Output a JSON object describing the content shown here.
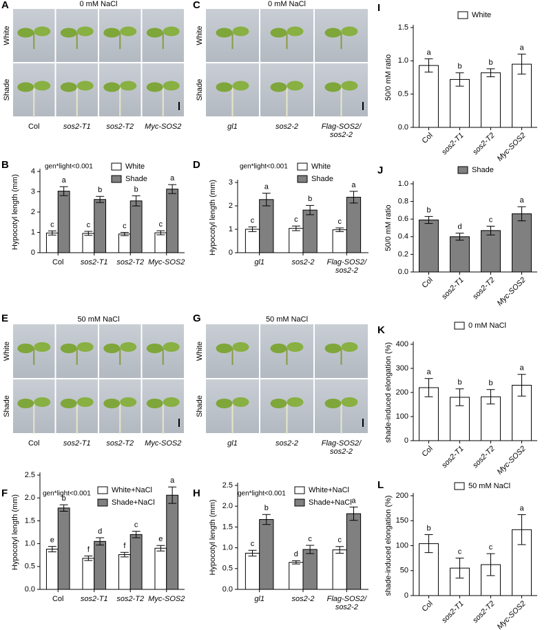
{
  "photo_panels": [
    {
      "panel": "A",
      "title": "0 mM NaCl",
      "rows": [
        "White",
        "Shade"
      ],
      "columns": [
        "Col",
        "sos2-T1",
        "sos2-T2",
        "Myc-SOS2"
      ]
    },
    {
      "panel": "C",
      "title": "0 mM NaCl",
      "rows": [
        "White",
        "Shade"
      ],
      "columns": [
        "gl1",
        "sos2-2",
        "Flag-SOS2/\nsos2-2"
      ]
    },
    {
      "panel": "E",
      "title": "50 mM NaCl",
      "rows": [
        "White",
        "Shade"
      ],
      "columns": [
        "Col",
        "sos2-T1",
        "sos2-T2",
        "Myc-SOS2"
      ]
    },
    {
      "panel": "G",
      "title": "50 mM NaCl",
      "rows": [
        "White",
        "Shade"
      ],
      "columns": [
        "gl1",
        "sos2-2",
        "Flag-SOS2/\nsos2-2"
      ]
    }
  ],
  "chart_data": [
    {
      "panel": "B",
      "type": "bar",
      "annotation": "gen*light<0.001",
      "y_label": "Hypocotyl length (mm)",
      "categories": [
        "Col",
        "sos2-T1",
        "sos2-T2",
        "Myc-SOS2"
      ],
      "series": [
        {
          "name": "White",
          "color": "#ffffff",
          "values": [
            0.97,
            0.95,
            0.92,
            0.98
          ],
          "errors": [
            0.1,
            0.1,
            0.08,
            0.1
          ],
          "letters": [
            "c",
            "c",
            "c",
            "c"
          ]
        },
        {
          "name": "Shade",
          "color": "#808080",
          "values": [
            3.03,
            2.62,
            2.55,
            3.13
          ],
          "errors": [
            0.22,
            0.15,
            0.25,
            0.22
          ],
          "letters": [
            "a",
            "b",
            "b",
            "a"
          ]
        }
      ],
      "ylim": [
        0,
        4
      ],
      "yticks": [
        0,
        1,
        2,
        3,
        4
      ],
      "legend": "top-right"
    },
    {
      "panel": "D",
      "type": "bar",
      "annotation": "gen*light<0.001",
      "y_label": "Hypocotyl length (mm)",
      "categories": [
        "gl1",
        "sos2-2",
        "Flag-SOS2/\nsos2-2"
      ],
      "series": [
        {
          "name": "White",
          "color": "#ffffff",
          "values": [
            1.0,
            1.04,
            0.98
          ],
          "errors": [
            0.1,
            0.1,
            0.08
          ],
          "letters": [
            "c",
            "c",
            "c"
          ]
        },
        {
          "name": "Shade",
          "color": "#808080",
          "values": [
            2.27,
            1.82,
            2.37
          ],
          "errors": [
            0.27,
            0.2,
            0.25
          ],
          "letters": [
            "a",
            "b",
            "a"
          ]
        }
      ],
      "ylim": [
        0,
        3
      ],
      "yticks": [
        0,
        1,
        2,
        3
      ],
      "legend": "top-right"
    },
    {
      "panel": "F",
      "type": "bar",
      "annotation": "gen*light<0.001",
      "y_label": "Hypocotyl length (mm)",
      "categories": [
        "Col",
        "sos2-T1",
        "sos2-T2",
        "Myc-SOS2"
      ],
      "series": [
        {
          "name": "White+NaCl",
          "color": "#ffffff",
          "values": [
            0.88,
            0.68,
            0.76,
            0.9
          ],
          "errors": [
            0.06,
            0.05,
            0.05,
            0.06
          ],
          "letters": [
            "e",
            "f",
            "f",
            "e"
          ]
        },
        {
          "name": "Shade+NaCl",
          "color": "#808080",
          "values": [
            1.78,
            1.05,
            1.2,
            2.06
          ],
          "errors": [
            0.07,
            0.08,
            0.07,
            0.18
          ],
          "letters": [
            "b",
            "d",
            "c",
            "a"
          ]
        }
      ],
      "ylim": [
        0,
        2.5
      ],
      "yticks": [
        {
          "value": 0,
          "label": "0.0"
        },
        {
          "value": 0.5,
          "label": "0.5"
        },
        {
          "value": 1,
          "label": "1.0"
        },
        {
          "value": 1.5,
          "label": "1.5"
        },
        {
          "value": 2,
          "label": "2.0"
        },
        {
          "value": 2.5,
          "label": "2.5"
        }
      ],
      "legend": "top-right"
    },
    {
      "panel": "H",
      "type": "bar",
      "annotation": "gen*light<0.001",
      "y_label": "Hypocotyl length (mm)",
      "categories": [
        "gl1",
        "sos2-2",
        "Flag-SOS2/\nsos2-2"
      ],
      "series": [
        {
          "name": "White+NaCl",
          "color": "#ffffff",
          "values": [
            0.87,
            0.65,
            0.95
          ],
          "errors": [
            0.07,
            0.04,
            0.08
          ],
          "letters": [
            "c",
            "d",
            "c"
          ]
        },
        {
          "name": "Shade+NaCl",
          "color": "#808080",
          "values": [
            1.68,
            0.96,
            1.82
          ],
          "errors": [
            0.12,
            0.1,
            0.16
          ],
          "letters": [
            "b",
            "c",
            "a"
          ]
        }
      ],
      "ylim": [
        0,
        2.5
      ],
      "yticks": [
        {
          "value": 0,
          "label": "0.0"
        },
        {
          "value": 0.5,
          "label": "0.5"
        },
        {
          "value": 1,
          "label": "1.0"
        },
        {
          "value": 1.5,
          "label": "1.5"
        },
        {
          "value": 2,
          "label": "2.0"
        },
        {
          "value": 2.5,
          "label": "2.5"
        }
      ],
      "legend": "top-right"
    },
    {
      "panel": "I",
      "type": "bar",
      "y_label": "50/0 mM ratio",
      "categories": [
        "Col",
        "sos2-T1",
        "sos2-T2",
        "Myc-SOS2"
      ],
      "series": [
        {
          "name": "White",
          "color": "#ffffff",
          "values": [
            0.93,
            0.72,
            0.82,
            0.95
          ],
          "errors": [
            0.1,
            0.1,
            0.06,
            0.15
          ],
          "letters": [
            "a",
            "b",
            "b",
            "a"
          ]
        }
      ],
      "ylim": [
        0,
        1.5
      ],
      "yticks": [
        {
          "value": 0,
          "label": "0.0"
        },
        {
          "value": 0.5,
          "label": "0.5"
        },
        {
          "value": 1,
          "label": "1.0"
        },
        {
          "value": 1.5,
          "label": "1.5"
        }
      ],
      "legend": "top"
    },
    {
      "panel": "J",
      "type": "bar",
      "y_label": "50/0 mM ratio",
      "categories": [
        "Col",
        "sos2-T1",
        "sos2-T2",
        "Myc-SOS2"
      ],
      "series": [
        {
          "name": "Shade",
          "color": "#808080",
          "values": [
            0.59,
            0.4,
            0.47,
            0.66
          ],
          "errors": [
            0.04,
            0.04,
            0.05,
            0.08
          ],
          "letters": [
            "b",
            "d",
            "c",
            "a"
          ]
        }
      ],
      "ylim": [
        0,
        1.0
      ],
      "yticks": [
        {
          "value": 0,
          "label": "0.0"
        },
        {
          "value": 0.2,
          "label": "0.2"
        },
        {
          "value": 0.4,
          "label": "0.4"
        },
        {
          "value": 0.6,
          "label": "0.6"
        },
        {
          "value": 0.8,
          "label": "0.8"
        },
        {
          "value": 1.0,
          "label": "1.0"
        }
      ],
      "legend": "top"
    },
    {
      "panel": "K",
      "type": "bar",
      "y_label": "shade-induced elongation (%)",
      "categories": [
        "Col",
        "sos2-T1",
        "sos2-T2",
        "Myc-SOS2"
      ],
      "series": [
        {
          "name": "0 mM NaCl",
          "color": "#ffffff",
          "values": [
            220,
            180,
            182,
            230
          ],
          "errors": [
            38,
            35,
            30,
            45
          ],
          "letters": [
            "a",
            "b",
            "b",
            "a"
          ]
        }
      ],
      "ylim": [
        0,
        400
      ],
      "yticks": [
        0,
        100,
        200,
        300,
        400
      ],
      "legend": "top"
    },
    {
      "panel": "L",
      "type": "bar",
      "y_label": "shade-induced elongation (%)",
      "categories": [
        "Col",
        "sos2-T1",
        "sos2-T2",
        "Myc-SOS2"
      ],
      "series": [
        {
          "name": "50 mM NaCl",
          "color": "#ffffff",
          "values": [
            104,
            55,
            62,
            132
          ],
          "errors": [
            18,
            20,
            22,
            30
          ],
          "letters": [
            "b",
            "c",
            "c",
            "a"
          ]
        }
      ],
      "ylim": [
        0,
        200
      ],
      "yticks": [
        0,
        50,
        100,
        150,
        200
      ],
      "legend": "top"
    }
  ]
}
